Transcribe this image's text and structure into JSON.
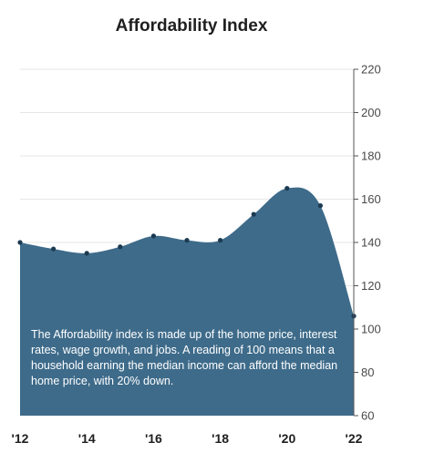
{
  "chart_data": {
    "type": "area",
    "title": "Affordability Index",
    "x": [
      2012,
      2013,
      2014,
      2015,
      2016,
      2017,
      2018,
      2019,
      2020,
      2021,
      2022
    ],
    "values": [
      140,
      137,
      135,
      138,
      143,
      141,
      141,
      153,
      165,
      157,
      106
    ],
    "xtick_labels": [
      "'12",
      "'14",
      "'16",
      "'18",
      "'20",
      "'22"
    ],
    "ytick_labels": [
      "220",
      "200",
      "180",
      "160",
      "140",
      "120",
      "100",
      "80",
      "60"
    ],
    "ylim": [
      60,
      220
    ],
    "xlim": [
      2012,
      2022
    ],
    "yaxis_side": "right",
    "grid": true,
    "annotation": "The Affordability index is made up of the home price, interest rates, wage growth, and jobs. A reading of 100 means that a household earning the median income can afford the median home price, with 20% down.",
    "colors": {
      "area_fill": "#3e6b8a",
      "marker": "#1c3b52",
      "gridline": "#e6e6e6",
      "axis": "#555555"
    }
  }
}
